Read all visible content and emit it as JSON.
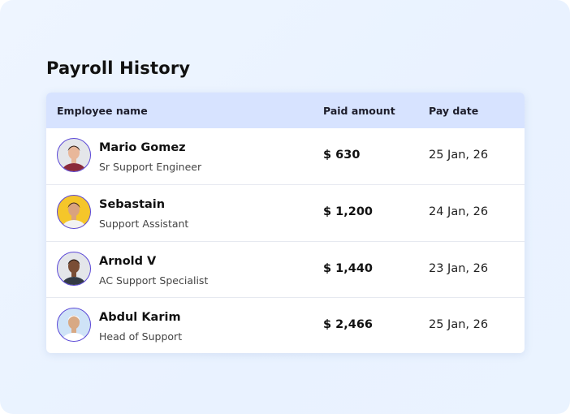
{
  "header": {
    "title": "Payroll History"
  },
  "table": {
    "columns": [
      "Employee name",
      "Paid amount",
      "Pay date"
    ],
    "rows": [
      {
        "name": "Mario Gomez",
        "role": "Sr Support Engineer",
        "amount": "$ 630",
        "date": "25 Jan, 26"
      },
      {
        "name": "Sebastain",
        "role": "Support Assistant",
        "amount": "$ 1,200",
        "date": "24 Jan, 26"
      },
      {
        "name": "Arnold V",
        "role": "AC Support Specialist",
        "amount": "$ 1,440",
        "date": "23 Jan, 26"
      },
      {
        "name": "Abdul Karim",
        "role": "Head of Support",
        "amount": "$ 2,466",
        "date": "25 Jan, 26"
      }
    ]
  }
}
